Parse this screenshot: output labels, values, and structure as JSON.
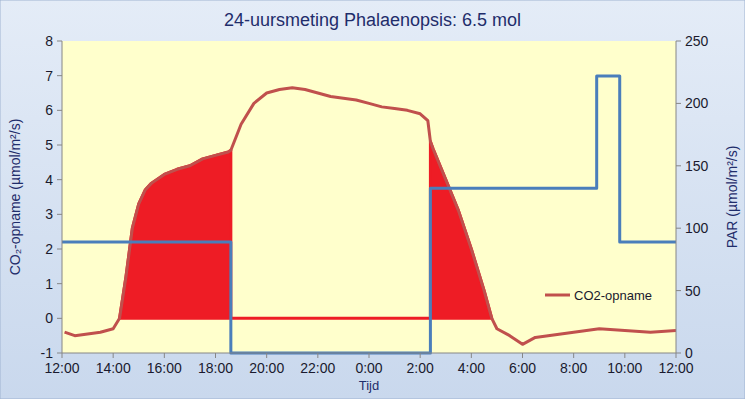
{
  "chart_data": {
    "type": "line",
    "title": "24-uursmeting Phalaenopsis: 6.5 mol",
    "xlabel": "Tijd",
    "ylabel": "CO₂-opname (µmol/m²/s)",
    "y2label": "PAR (µmol/m²/s)",
    "xlim": [
      12,
      36
    ],
    "xticks": [
      {
        "value": 12,
        "label": "12:00"
      },
      {
        "value": 14,
        "label": "14:00"
      },
      {
        "value": 16,
        "label": "16:00"
      },
      {
        "value": 18,
        "label": "18:00"
      },
      {
        "value": 20,
        "label": "20:00"
      },
      {
        "value": 22,
        "label": "22:00"
      },
      {
        "value": 24,
        "label": "0:00"
      },
      {
        "value": 26,
        "label": "2:00"
      },
      {
        "value": 28,
        "label": "4:00"
      },
      {
        "value": 30,
        "label": "6:00"
      },
      {
        "value": 32,
        "label": "8:00"
      },
      {
        "value": 34,
        "label": "10:00"
      },
      {
        "value": 36,
        "label": "12:00"
      }
    ],
    "ylim": [
      -1,
      8
    ],
    "yticks": [
      -1,
      0,
      1,
      2,
      3,
      4,
      5,
      6,
      7,
      8
    ],
    "y2lim": [
      0,
      250
    ],
    "y2ticks": [
      0,
      50,
      100,
      150,
      200,
      250
    ],
    "grid": false,
    "legend": "lower right",
    "series": [
      {
        "name": "CO2-opname",
        "type": "line",
        "color": "#c0504d",
        "axis": "y",
        "x": [
          12.1,
          12.5,
          13,
          13.5,
          14,
          14.25,
          14.5,
          14.75,
          15,
          15.25,
          15.5,
          16,
          16.5,
          17,
          17.5,
          18,
          18.5,
          18.6,
          19,
          19.5,
          20,
          20.5,
          21,
          21.5,
          22,
          22.5,
          23,
          23.5,
          24,
          24.5,
          25,
          25.5,
          26,
          26.3,
          26.4,
          26.5,
          27,
          27.5,
          28,
          28.5,
          28.8,
          29,
          29.5,
          30,
          30.5,
          31,
          32,
          33,
          34,
          35,
          36
        ],
        "values": [
          -0.4,
          -0.5,
          -0.45,
          -0.4,
          -0.3,
          0.0,
          1.2,
          2.6,
          3.3,
          3.7,
          3.9,
          4.15,
          4.3,
          4.4,
          4.6,
          4.7,
          4.8,
          4.85,
          5.6,
          6.2,
          6.5,
          6.6,
          6.65,
          6.6,
          6.5,
          6.4,
          6.35,
          6.3,
          6.2,
          6.1,
          6.05,
          6.0,
          5.9,
          5.7,
          5.1,
          4.9,
          4.0,
          3.1,
          2.0,
          0.8,
          0.0,
          -0.3,
          -0.5,
          -0.75,
          -0.55,
          -0.5,
          -0.4,
          -0.3,
          -0.35,
          -0.4,
          -0.35
        ]
      },
      {
        "type": "area",
        "color": "#ee1c25",
        "axis": "y",
        "x": [
          14.25,
          14.5,
          14.75,
          15,
          15.25,
          15.5,
          16,
          16.5,
          17,
          17.5,
          18,
          18.5,
          18.6,
          18.6,
          26.4,
          26.4,
          26.5,
          27,
          27.5,
          28,
          28.5,
          28.8
        ],
        "values": [
          0,
          1.2,
          2.6,
          3.3,
          3.7,
          3.9,
          4.15,
          4.3,
          4.4,
          4.6,
          4.7,
          4.8,
          4.85,
          0,
          0,
          5.1,
          4.9,
          4.0,
          3.1,
          2.0,
          0.8,
          0
        ]
      },
      {
        "type": "line",
        "color": "#4a7ebb",
        "axis": "y2",
        "x": [
          12,
          18.6,
          18.6,
          26.4,
          26.4,
          32.9,
          32.9,
          33.8,
          33.8,
          36
        ],
        "values": [
          89,
          89,
          0,
          0,
          132,
          132,
          222,
          222,
          89,
          89
        ]
      }
    ]
  }
}
